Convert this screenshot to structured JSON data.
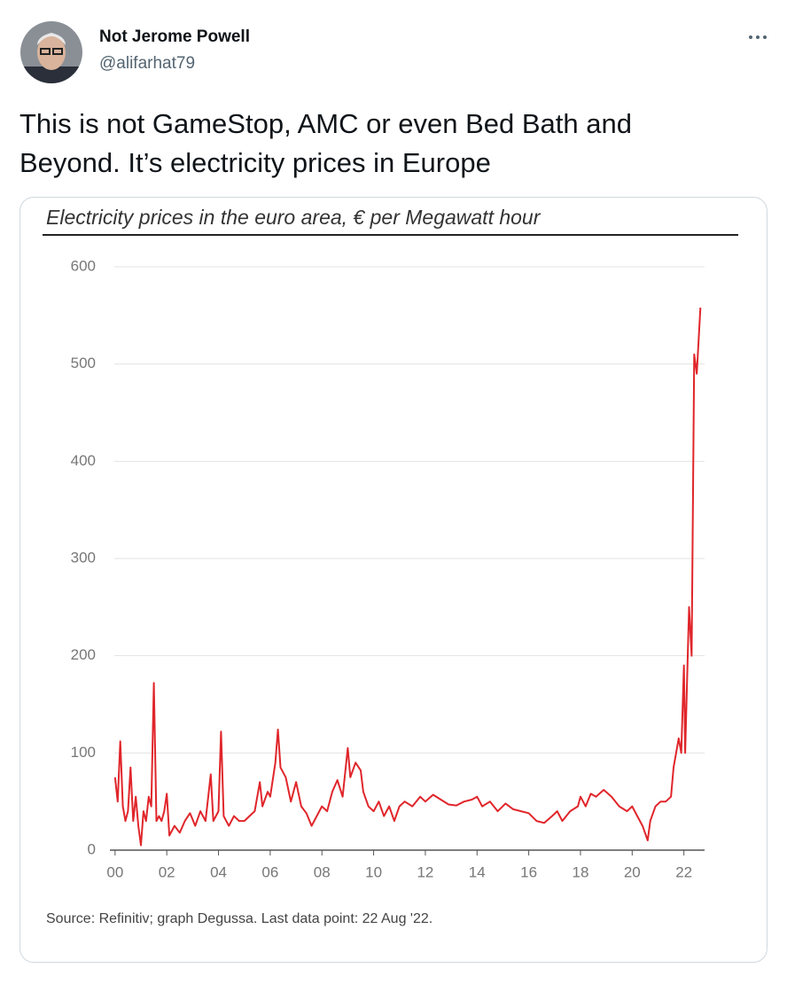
{
  "tweet": {
    "name": "Not Jerome Powell",
    "handle": "@alifarhat79",
    "text": "This is not GameStop, AMC or even Bed Bath and Beyond. It’s electricity prices in Europe"
  },
  "chart_data": {
    "type": "line",
    "title": "Electricity prices in the euro area, € per Megawatt hour",
    "source": "Source: Refinitiv; graph Degussa. Last data point: 22 Aug '22.",
    "color": "#e0262b",
    "grid": true,
    "x": [
      2000.0,
      2000.1,
      2000.2,
      2000.3,
      2000.4,
      2000.5,
      2000.6,
      2000.7,
      2000.8,
      2000.9,
      2001.0,
      2001.1,
      2001.2,
      2001.3,
      2001.4,
      2001.5,
      2001.6,
      2001.7,
      2001.8,
      2001.9,
      2002.0,
      2002.1,
      2002.3,
      2002.5,
      2002.7,
      2002.9,
      2003.1,
      2003.3,
      2003.5,
      2003.7,
      2003.8,
      2004.0,
      2004.1,
      2004.2,
      2004.4,
      2004.6,
      2004.8,
      2005.0,
      2005.2,
      2005.4,
      2005.6,
      2005.7,
      2005.9,
      2006.0,
      2006.2,
      2006.3,
      2006.4,
      2006.6,
      2006.8,
      2007.0,
      2007.2,
      2007.4,
      2007.6,
      2007.8,
      2008.0,
      2008.2,
      2008.4,
      2008.6,
      2008.8,
      2009.0,
      2009.1,
      2009.3,
      2009.5,
      2009.6,
      2009.8,
      2010.0,
      2010.2,
      2010.4,
      2010.6,
      2010.8,
      2011.0,
      2011.2,
      2011.5,
      2011.8,
      2012.0,
      2012.3,
      2012.6,
      2012.9,
      2013.2,
      2013.5,
      2013.8,
      2014.0,
      2014.2,
      2014.5,
      2014.8,
      2015.1,
      2015.4,
      2015.7,
      2016.0,
      2016.3,
      2016.6,
      2016.9,
      2017.1,
      2017.3,
      2017.6,
      2017.9,
      2018.0,
      2018.2,
      2018.4,
      2018.6,
      2018.9,
      2019.2,
      2019.5,
      2019.8,
      2020.0,
      2020.2,
      2020.4,
      2020.6,
      2020.7,
      2020.9,
      2021.1,
      2021.3,
      2021.5,
      2021.6,
      2021.8,
      2021.9,
      2022.0,
      2022.05,
      2022.15,
      2022.2,
      2022.3,
      2022.4,
      2022.5,
      2022.64
    ],
    "values": [
      75,
      50,
      112,
      45,
      30,
      40,
      85,
      30,
      55,
      25,
      5,
      40,
      30,
      55,
      45,
      172,
      30,
      35,
      30,
      40,
      58,
      15,
      25,
      18,
      30,
      38,
      25,
      40,
      30,
      78,
      30,
      40,
      122,
      35,
      25,
      35,
      30,
      30,
      35,
      40,
      70,
      45,
      60,
      55,
      90,
      124,
      85,
      75,
      50,
      70,
      45,
      38,
      25,
      35,
      45,
      40,
      60,
      72,
      55,
      105,
      75,
      90,
      82,
      60,
      45,
      40,
      50,
      35,
      45,
      30,
      45,
      50,
      45,
      55,
      50,
      57,
      52,
      47,
      46,
      50,
      52,
      55,
      45,
      50,
      40,
      48,
      42,
      40,
      38,
      30,
      28,
      35,
      40,
      30,
      40,
      45,
      55,
      45,
      58,
      55,
      62,
      55,
      45,
      40,
      45,
      35,
      25,
      10,
      30,
      45,
      50,
      50,
      55,
      85,
      115,
      100,
      190,
      100,
      200,
      250,
      200,
      510,
      490,
      558
    ],
    "xlim": [
      1999.8,
      2022.8
    ],
    "xticks": [
      {
        "value": 2000,
        "label": "00"
      },
      {
        "value": 2002,
        "label": "02"
      },
      {
        "value": 2004,
        "label": "04"
      },
      {
        "value": 2006,
        "label": "06"
      },
      {
        "value": 2008,
        "label": "08"
      },
      {
        "value": 2010,
        "label": "10"
      },
      {
        "value": 2012,
        "label": "12"
      },
      {
        "value": 2014,
        "label": "14"
      },
      {
        "value": 2016,
        "label": "16"
      },
      {
        "value": 2018,
        "label": "18"
      },
      {
        "value": 2020,
        "label": "20"
      },
      {
        "value": 2022,
        "label": "22"
      }
    ],
    "ylim": [
      0,
      600
    ],
    "yticks": [
      0,
      100,
      200,
      300,
      400,
      500,
      600
    ]
  }
}
